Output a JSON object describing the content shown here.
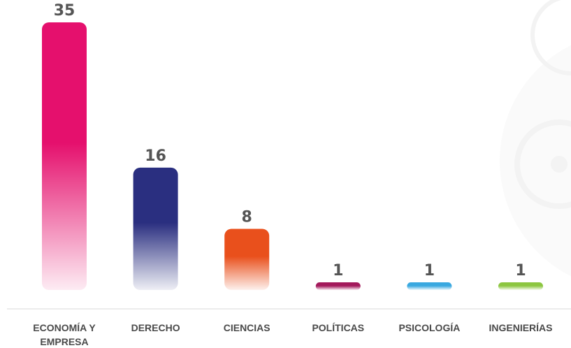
{
  "chart_data": {
    "type": "bar",
    "categories": [
      "ECONOMÍA Y EMPRESA",
      "DERECHO",
      "CIENCIAS",
      "POLÍTICAS",
      "PSICOLOGÍA",
      "INGENIERÍAS"
    ],
    "values": [
      35,
      16,
      8,
      1,
      1,
      1
    ],
    "colors": [
      "#e5106d",
      "#2a2f80",
      "#e9501c",
      "#a3195b",
      "#39a8e0",
      "#8cc63f"
    ]
  }
}
